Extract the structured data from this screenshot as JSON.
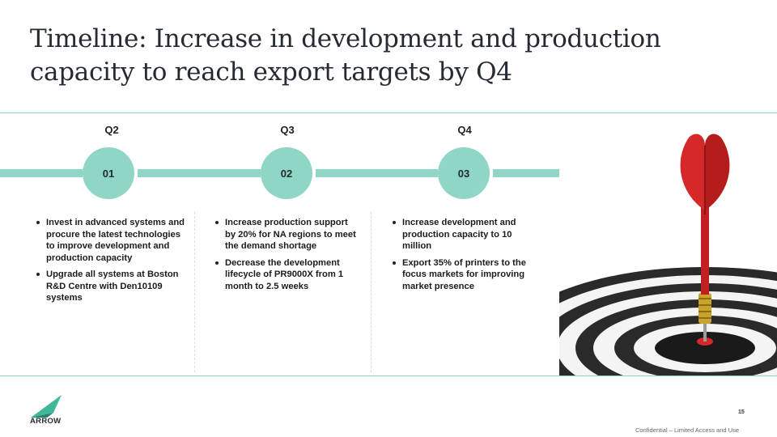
{
  "title": "Timeline: Increase in development and production capacity to reach export targets by Q4",
  "timeline": [
    {
      "quarter": "Q2",
      "step": "01",
      "bullets": [
        "Invest in advanced systems and procure the latest technologies to improve development and production capacity",
        "Upgrade all systems at Boston R&D Centre with Den10109 systems"
      ]
    },
    {
      "quarter": "Q3",
      "step": "02",
      "bullets": [
        "Increase production support by 20% for NA regions to meet the demand shortage",
        "Decrease the development lifecycle of PR9000X  from 1 month to 2.5 weeks"
      ]
    },
    {
      "quarter": "Q4",
      "step": "03",
      "bullets": [
        "Increase development and production capacity to 10 million",
        "Export 35% of printers to the focus markets for improving market presence"
      ]
    }
  ],
  "logo_text": "ARROW",
  "page_number": "15",
  "footer_note": "Confidential – Limited Access and Use",
  "colors": {
    "accent": "#8fd6c7",
    "rule": "#8fd0c2",
    "dart": "#d62828"
  },
  "icons": [
    "rocket-icon",
    "dart-target-image",
    "arrow-logo-icon"
  ]
}
